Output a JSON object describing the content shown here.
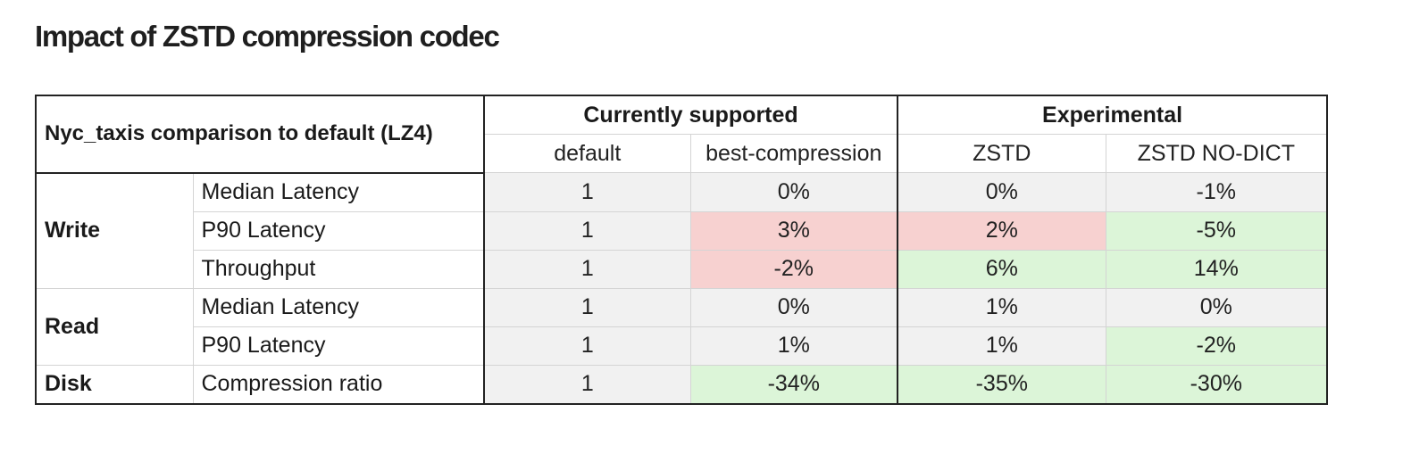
{
  "title": "Impact of ZSTD compression codec",
  "table": {
    "corner_label": "Nyc_taxis comparison to default (LZ4)",
    "groups": [
      {
        "label": "Currently supported"
      },
      {
        "label": "Experimental"
      }
    ],
    "columns": [
      "default",
      "best-compression",
      "ZSTD",
      "ZSTD NO-DICT"
    ],
    "sections": [
      {
        "label": "Write",
        "rows": [
          {
            "metric": "Median Latency",
            "values": [
              "1",
              "0%",
              "0%",
              "-1%"
            ],
            "highlight": [
              "none",
              "none",
              "none",
              "none"
            ]
          },
          {
            "metric": "P90 Latency",
            "values": [
              "1",
              "3%",
              "2%",
              "-5%"
            ],
            "highlight": [
              "none",
              "red",
              "red",
              "green"
            ]
          },
          {
            "metric": "Throughput",
            "values": [
              "1",
              "-2%",
              "6%",
              "14%"
            ],
            "highlight": [
              "none",
              "red",
              "green",
              "green"
            ]
          }
        ]
      },
      {
        "label": "Read",
        "rows": [
          {
            "metric": "Median Latency",
            "values": [
              "1",
              "0%",
              "1%",
              "0%"
            ],
            "highlight": [
              "none",
              "none",
              "none",
              "none"
            ]
          },
          {
            "metric": "P90 Latency",
            "values": [
              "1",
              "1%",
              "1%",
              "-2%"
            ],
            "highlight": [
              "none",
              "none",
              "none",
              "green"
            ]
          }
        ]
      },
      {
        "label": "Disk",
        "rows": [
          {
            "metric": "Compression ratio",
            "values": [
              "1",
              "-34%",
              "-35%",
              "-30%"
            ],
            "highlight": [
              "none",
              "green",
              "green",
              "green"
            ]
          }
        ]
      }
    ]
  },
  "colors": {
    "neutral": "#f1f1f1",
    "worse": "#f7d1d0",
    "better": "#dcf5d8"
  }
}
